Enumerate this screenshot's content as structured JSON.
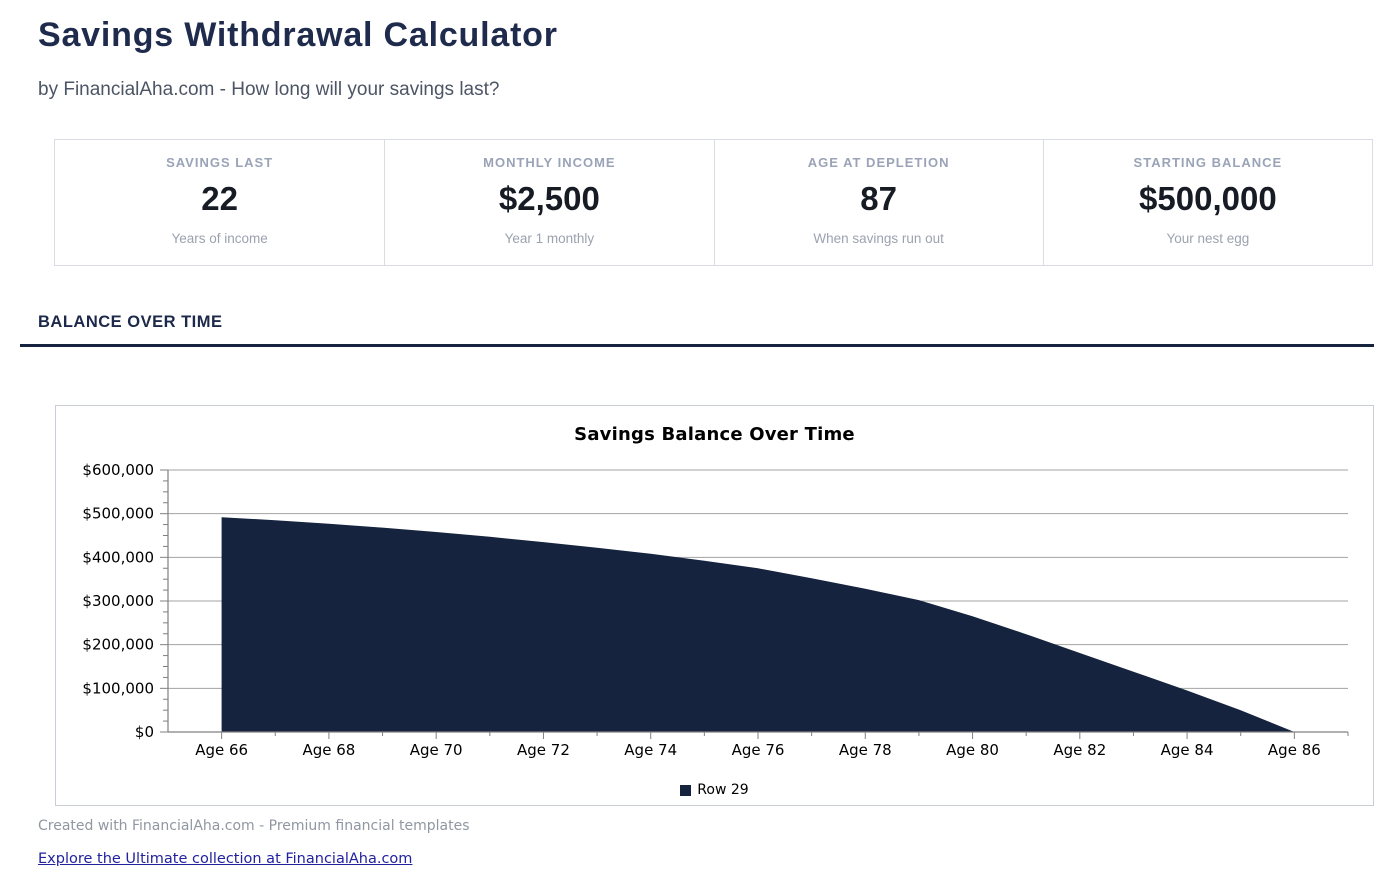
{
  "page": {
    "title": "Savings Withdrawal Calculator",
    "subtitle": "by FinancialAha.com - How long will your savings last?",
    "section_heading": "BALANCE OVER TIME",
    "footer_note": "Created with FinancialAha.com - Premium financial templates",
    "footer_link": "Explore the Ultimate collection at FinancialAha.com"
  },
  "stats": [
    {
      "label": "SAVINGS LAST",
      "value": "22",
      "sub": "Years of income"
    },
    {
      "label": "MONTHLY INCOME",
      "value": "$2,500",
      "sub": "Year 1 monthly"
    },
    {
      "label": "AGE AT DEPLETION",
      "value": "87",
      "sub": "When savings run out"
    },
    {
      "label": "STARTING BALANCE",
      "value": "$500,000",
      "sub": "Your nest egg"
    }
  ],
  "colors": {
    "accent_navy": "#16233e",
    "heading_navy": "#1f2b4c",
    "grid": "#a3a3a3",
    "axis": "#808080",
    "link_blue": "#22229e"
  },
  "chart_data": {
    "type": "area",
    "title": "Savings Balance Over Time",
    "x_tick_prefix": "Age ",
    "x": [
      66,
      67,
      68,
      69,
      70,
      71,
      72,
      73,
      74,
      75,
      76,
      77,
      78,
      79,
      80,
      81,
      82,
      83,
      84,
      85,
      86
    ],
    "series": [
      {
        "name": "Row 29",
        "color": "#16233e",
        "values": [
          492000,
          485000,
          477000,
          468000,
          458000,
          447000,
          435000,
          422000,
          408000,
          392000,
          375000,
          352000,
          328000,
          302000,
          265000,
          224000,
          181000,
          138000,
          95000,
          50000,
          0
        ]
      }
    ],
    "x_axis_range": [
      65,
      87
    ],
    "x_label_every": 2,
    "ylim": [
      0,
      600000
    ],
    "y_major_step": 100000,
    "y_minor_step": 25000,
    "y_tick_format": "$#,##0",
    "grid": "horizontal",
    "legend_position": "bottom"
  }
}
